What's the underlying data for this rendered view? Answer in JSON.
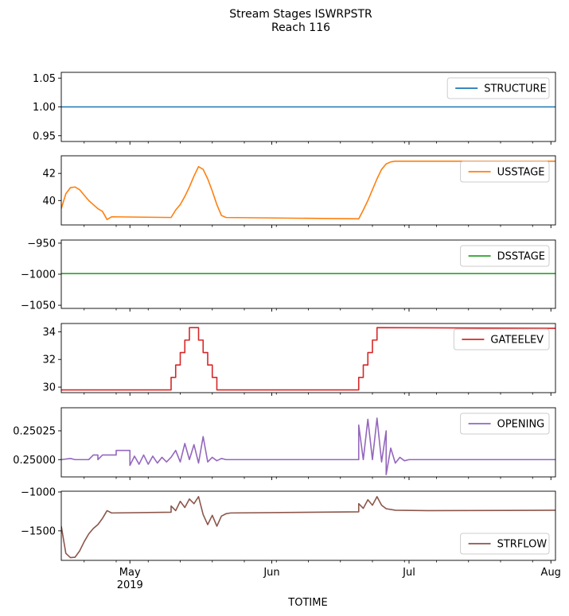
{
  "chart_data": {
    "type": "line",
    "title_lines": [
      "Stream Stages ISWRPSTR",
      "Reach 116"
    ],
    "xlabel": "TOTIME",
    "x_range": [
      "2019-04-16",
      "2019-08-02"
    ],
    "x_major_ticks": [
      {
        "date": "2019-05-01",
        "label": "May",
        "sublabel": "2019"
      },
      {
        "date": "2019-06-01",
        "label": "Jun",
        "sublabel": ""
      },
      {
        "date": "2019-07-01",
        "label": "Jul",
        "sublabel": ""
      },
      {
        "date": "2019-08-01",
        "label": "Aug",
        "sublabel": ""
      }
    ],
    "x_minor_tick_dates": [
      "2019-04-21",
      "2019-04-28",
      "2019-05-05",
      "2019-05-12",
      "2019-05-19",
      "2019-05-26",
      "2019-06-02",
      "2019-06-09",
      "2019-06-16",
      "2019-06-23",
      "2019-06-30",
      "2019-07-07",
      "2019-07-14",
      "2019-07-21",
      "2019-07-28"
    ],
    "panels": [
      {
        "name": "STRUCTURE",
        "color": "#1f77b4",
        "legend": "upper right",
        "ylim": [
          0.94,
          1.06
        ],
        "yticks": [
          {
            "v": 0.95,
            "label": "0.95"
          },
          {
            "v": 1.0,
            "label": "1.00"
          },
          {
            "v": 1.05,
            "label": "1.05"
          }
        ],
        "points": [
          [
            "2019-04-16",
            1.0
          ],
          [
            "2019-08-02",
            1.0
          ]
        ]
      },
      {
        "name": "USSTAGE",
        "color": "#ff7f0e",
        "legend": "upper right",
        "ylim": [
          38.2,
          43.3
        ],
        "yticks": [
          {
            "v": 40,
            "label": "40"
          },
          {
            "v": 42,
            "label": "42"
          }
        ],
        "points": [
          [
            "2019-04-16",
            39.4
          ],
          [
            "2019-04-17",
            40.5
          ],
          [
            "2019-04-18",
            40.95
          ],
          [
            "2019-04-19",
            41.0
          ],
          [
            "2019-04-20",
            40.8
          ],
          [
            "2019-04-21",
            40.4
          ],
          [
            "2019-04-22",
            40.0
          ],
          [
            "2019-04-23",
            39.7
          ],
          [
            "2019-04-24",
            39.4
          ],
          [
            "2019-04-25",
            39.2
          ],
          [
            "2019-04-26",
            38.6
          ],
          [
            "2019-04-27",
            38.8
          ],
          [
            "2019-05-10",
            38.75
          ],
          [
            "2019-05-11",
            39.3
          ],
          [
            "2019-05-12",
            39.7
          ],
          [
            "2019-05-13",
            40.3
          ],
          [
            "2019-05-14",
            41.0
          ],
          [
            "2019-05-15",
            41.8
          ],
          [
            "2019-05-16",
            42.5
          ],
          [
            "2019-05-17",
            42.3
          ],
          [
            "2019-05-18",
            41.6
          ],
          [
            "2019-05-19",
            40.7
          ],
          [
            "2019-05-20",
            39.7
          ],
          [
            "2019-05-21",
            38.9
          ],
          [
            "2019-05-22",
            38.75
          ],
          [
            "2019-06-20",
            38.65
          ],
          [
            "2019-06-21",
            39.3
          ],
          [
            "2019-06-22",
            40.0
          ],
          [
            "2019-06-23",
            40.8
          ],
          [
            "2019-06-24",
            41.6
          ],
          [
            "2019-06-25",
            42.3
          ],
          [
            "2019-06-26",
            42.7
          ],
          [
            "2019-06-27",
            42.85
          ],
          [
            "2019-06-28",
            42.9
          ],
          [
            "2019-08-02",
            42.9
          ]
        ]
      },
      {
        "name": "DSSTAGE",
        "color": "#2ca02c",
        "legend": "upper right",
        "ylim": [
          -1055,
          -945
        ],
        "yticks": [
          {
            "v": -1050,
            "label": "−1050"
          },
          {
            "v": -1000,
            "label": "−1000"
          },
          {
            "v": -950,
            "label": "−950"
          }
        ],
        "points": [
          [
            "2019-04-16",
            -999
          ],
          [
            "2019-08-02",
            -999
          ]
        ]
      },
      {
        "name": "GATEELEV",
        "color": "#d62728",
        "legend": "upper right",
        "ylim": [
          29.6,
          34.6
        ],
        "yticks": [
          {
            "v": 30,
            "label": "30"
          },
          {
            "v": 32,
            "label": "32"
          },
          {
            "v": 34,
            "label": "34"
          }
        ],
        "points": [
          [
            "2019-04-16",
            29.8
          ],
          [
            "2019-05-10",
            29.8
          ],
          [
            "2019-05-10",
            30.7
          ],
          [
            "2019-05-11",
            30.7
          ],
          [
            "2019-05-11",
            31.6
          ],
          [
            "2019-05-12",
            31.6
          ],
          [
            "2019-05-12",
            32.5
          ],
          [
            "2019-05-13",
            32.5
          ],
          [
            "2019-05-13",
            33.4
          ],
          [
            "2019-05-14",
            33.4
          ],
          [
            "2019-05-14",
            34.3
          ],
          [
            "2019-05-15",
            34.3
          ],
          [
            "2019-05-16",
            34.3
          ],
          [
            "2019-05-16",
            33.4
          ],
          [
            "2019-05-17",
            33.4
          ],
          [
            "2019-05-17",
            32.5
          ],
          [
            "2019-05-18",
            32.5
          ],
          [
            "2019-05-18",
            31.6
          ],
          [
            "2019-05-19",
            31.6
          ],
          [
            "2019-05-19",
            30.7
          ],
          [
            "2019-05-20",
            30.7
          ],
          [
            "2019-05-20",
            29.8
          ],
          [
            "2019-06-20",
            29.8
          ],
          [
            "2019-06-20",
            30.7
          ],
          [
            "2019-06-21",
            30.7
          ],
          [
            "2019-06-21",
            31.6
          ],
          [
            "2019-06-22",
            31.6
          ],
          [
            "2019-06-22",
            32.5
          ],
          [
            "2019-06-23",
            32.5
          ],
          [
            "2019-06-23",
            33.4
          ],
          [
            "2019-06-24",
            33.4
          ],
          [
            "2019-06-24",
            34.3
          ],
          [
            "2019-08-02",
            34.25
          ]
        ]
      },
      {
        "name": "OPENING",
        "color": "#9467bd",
        "legend": "upper right",
        "ylim": [
          0.24985,
          0.25045
        ],
        "yticks": [
          {
            "v": 0.25,
            "label": "0.25000"
          },
          {
            "v": 0.25025,
            "label": "0.25025"
          }
        ],
        "points": [
          [
            "2019-04-16",
            0.25
          ],
          [
            "2019-04-18",
            0.25001
          ],
          [
            "2019-04-19",
            0.25
          ],
          [
            "2019-04-22",
            0.25
          ],
          [
            "2019-04-23",
            0.25004
          ],
          [
            "2019-04-24",
            0.25004
          ],
          [
            "2019-04-24",
            0.25
          ],
          [
            "2019-04-25",
            0.25004
          ],
          [
            "2019-04-28",
            0.25004
          ],
          [
            "2019-04-28",
            0.25008
          ],
          [
            "2019-05-01",
            0.25008
          ],
          [
            "2019-05-01",
            0.24995
          ],
          [
            "2019-05-02",
            0.25003
          ],
          [
            "2019-05-03",
            0.24996
          ],
          [
            "2019-05-04",
            0.25004
          ],
          [
            "2019-05-05",
            0.24996
          ],
          [
            "2019-05-06",
            0.25003
          ],
          [
            "2019-05-07",
            0.24997
          ],
          [
            "2019-05-08",
            0.25002
          ],
          [
            "2019-05-09",
            0.24998
          ],
          [
            "2019-05-10",
            0.25002
          ],
          [
            "2019-05-11",
            0.25008
          ],
          [
            "2019-05-12",
            0.24998
          ],
          [
            "2019-05-13",
            0.25014
          ],
          [
            "2019-05-14",
            0.25
          ],
          [
            "2019-05-15",
            0.25013
          ],
          [
            "2019-05-16",
            0.24997
          ],
          [
            "2019-05-17",
            0.2502
          ],
          [
            "2019-05-18",
            0.24998
          ],
          [
            "2019-05-19",
            0.25002
          ],
          [
            "2019-05-20",
            0.24999
          ],
          [
            "2019-05-21",
            0.25001
          ],
          [
            "2019-05-22",
            0.25
          ],
          [
            "2019-06-20",
            0.25
          ],
          [
            "2019-06-20",
            0.2503
          ],
          [
            "2019-06-21",
            0.25
          ],
          [
            "2019-06-22",
            0.25035
          ],
          [
            "2019-06-23",
            0.25
          ],
          [
            "2019-06-24",
            0.25036
          ],
          [
            "2019-06-25",
            0.24998
          ],
          [
            "2019-06-26",
            0.25025
          ],
          [
            "2019-06-26",
            0.24987
          ],
          [
            "2019-06-27",
            0.2501
          ],
          [
            "2019-06-28",
            0.24997
          ],
          [
            "2019-06-29",
            0.25002
          ],
          [
            "2019-06-30",
            0.24999
          ],
          [
            "2019-07-01",
            0.25
          ],
          [
            "2019-08-02",
            0.25
          ]
        ]
      },
      {
        "name": "STRFLOW",
        "color": "#8c564b",
        "legend": "lower right",
        "ylim": [
          -1880,
          -990
        ],
        "yticks": [
          {
            "v": -1500,
            "label": "−1500"
          },
          {
            "v": -1000,
            "label": "−1000"
          }
        ],
        "points": [
          [
            "2019-04-16",
            -1440
          ],
          [
            "2019-04-17",
            -1790
          ],
          [
            "2019-04-18",
            -1845
          ],
          [
            "2019-04-19",
            -1840
          ],
          [
            "2019-04-20",
            -1760
          ],
          [
            "2019-04-21",
            -1640
          ],
          [
            "2019-04-22",
            -1540
          ],
          [
            "2019-04-23",
            -1470
          ],
          [
            "2019-04-24",
            -1420
          ],
          [
            "2019-04-25",
            -1340
          ],
          [
            "2019-04-26",
            -1240
          ],
          [
            "2019-04-27",
            -1270
          ],
          [
            "2019-05-10",
            -1260
          ],
          [
            "2019-05-10",
            -1180
          ],
          [
            "2019-05-11",
            -1240
          ],
          [
            "2019-05-12",
            -1120
          ],
          [
            "2019-05-13",
            -1200
          ],
          [
            "2019-05-14",
            -1090
          ],
          [
            "2019-05-15",
            -1150
          ],
          [
            "2019-05-16",
            -1060
          ],
          [
            "2019-05-17",
            -1290
          ],
          [
            "2019-05-18",
            -1420
          ],
          [
            "2019-05-19",
            -1300
          ],
          [
            "2019-05-20",
            -1440
          ],
          [
            "2019-05-21",
            -1310
          ],
          [
            "2019-05-22",
            -1280
          ],
          [
            "2019-05-23",
            -1270
          ],
          [
            "2019-06-20",
            -1255
          ],
          [
            "2019-06-20",
            -1150
          ],
          [
            "2019-06-21",
            -1210
          ],
          [
            "2019-06-22",
            -1100
          ],
          [
            "2019-06-23",
            -1170
          ],
          [
            "2019-06-24",
            -1060
          ],
          [
            "2019-06-25",
            -1170
          ],
          [
            "2019-06-26",
            -1215
          ],
          [
            "2019-06-28",
            -1235
          ],
          [
            "2019-07-05",
            -1240
          ],
          [
            "2019-08-02",
            -1235
          ]
        ]
      }
    ]
  }
}
